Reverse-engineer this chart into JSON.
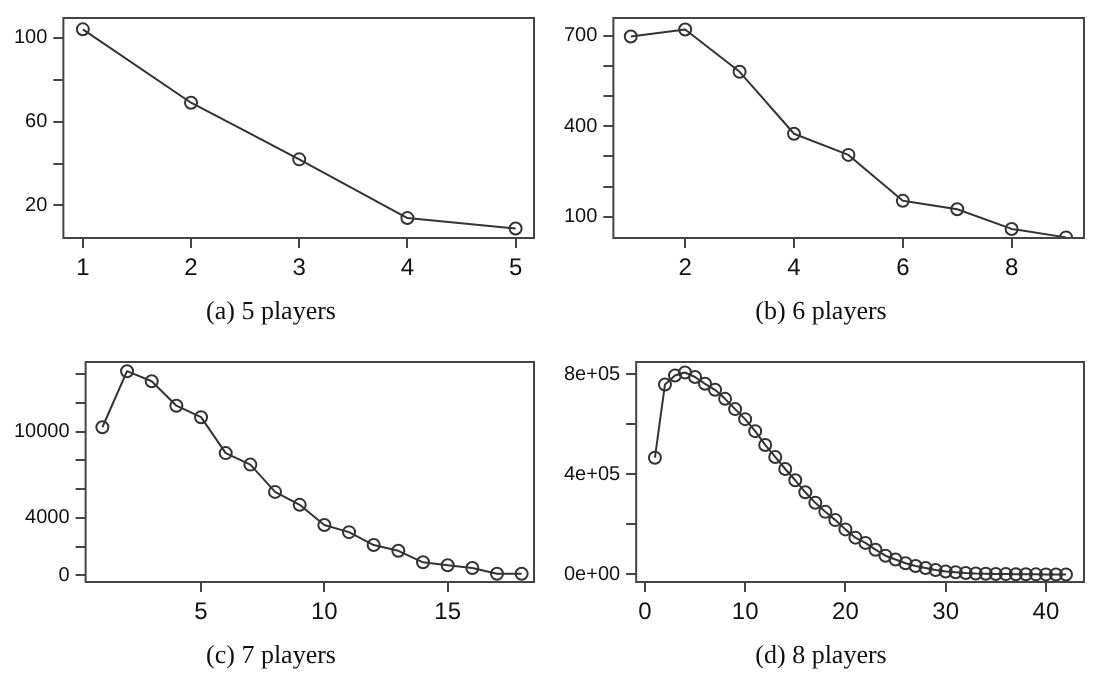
{
  "chart_data": [
    {
      "type": "line",
      "title": "(a) 5 players",
      "x": [
        1,
        2,
        3,
        4,
        5
      ],
      "series": [
        {
          "color": "#333333",
          "values": [
            104,
            69,
            42,
            14,
            9
          ]
        }
      ],
      "xlim": [
        0.82,
        5.17
      ],
      "xticks": [
        1,
        2,
        3,
        4,
        5
      ],
      "ylim": [
        4.5,
        109.4
      ],
      "yticks": [
        {
          "value": 20,
          "label": "20"
        },
        {
          "value": 40,
          "label": null
        },
        {
          "value": 60,
          "label": "60"
        },
        {
          "value": 80,
          "label": null
        },
        {
          "value": 100,
          "label": "100"
        }
      ],
      "grid": false,
      "legend": false,
      "marker": "circle",
      "line_style": "solid"
    },
    {
      "type": "line",
      "title": "(b) 6 players",
      "x": [
        1,
        2,
        3,
        4,
        5,
        6,
        7,
        8,
        9
      ],
      "series": [
        {
          "color": "#333333",
          "values": [
            697,
            720,
            580,
            375,
            305,
            153,
            125,
            60,
            32
          ]
        }
      ],
      "xlim": [
        0.68,
        9.33
      ],
      "xticks": [
        2,
        4,
        6,
        8
      ],
      "ylim": [
        30,
        758
      ],
      "yticks": [
        {
          "value": 100,
          "label": "100"
        },
        {
          "value": 200,
          "label": null
        },
        {
          "value": 300,
          "label": null
        },
        {
          "value": 400,
          "label": "400"
        },
        {
          "value": 500,
          "label": null
        },
        {
          "value": 600,
          "label": null
        },
        {
          "value": 700,
          "label": "700"
        }
      ],
      "grid": false,
      "legend": false,
      "marker": "circle",
      "line_style": "solid"
    },
    {
      "type": "line",
      "title": "(c) 7 players",
      "x": [
        1,
        2,
        3,
        4,
        5,
        6,
        7,
        8,
        9,
        10,
        11,
        12,
        13,
        14,
        15,
        16,
        17,
        18
      ],
      "series": [
        {
          "color": "#333333",
          "values": [
            10300,
            14200,
            13500,
            11800,
            11000,
            8500,
            7700,
            5800,
            4900,
            3500,
            3000,
            2100,
            1700,
            900,
            700,
            500,
            100,
            100
          ]
        }
      ],
      "xlim": [
        0.32,
        18.5
      ],
      "xticks": [
        5,
        10,
        15
      ],
      "ylim": [
        -470,
        14840
      ],
      "yticks": [
        {
          "value": 0,
          "label": "0"
        },
        {
          "value": 2000,
          "label": null
        },
        {
          "value": 4000,
          "label": "4000"
        },
        {
          "value": 6000,
          "label": null
        },
        {
          "value": 8000,
          "label": null
        },
        {
          "value": 10000,
          "label": "10000"
        },
        {
          "value": 12000,
          "label": null
        },
        {
          "value": 14000,
          "label": null
        }
      ],
      "grid": false,
      "legend": false,
      "marker": "circle",
      "line_style": "solid"
    },
    {
      "type": "line",
      "title": "(d) 8 players",
      "x": [
        1,
        2,
        3,
        4,
        5,
        6,
        7,
        8,
        9,
        10,
        11,
        12,
        13,
        14,
        15,
        16,
        17,
        18,
        19,
        20,
        21,
        22,
        23,
        24,
        25,
        26,
        27,
        28,
        29,
        30,
        31,
        32,
        33,
        34,
        35,
        36,
        37,
        38,
        39,
        40,
        41,
        42
      ],
      "series": [
        {
          "color": "#333333",
          "values": [
            466000,
            758000,
            794000,
            806000,
            788000,
            761000,
            737000,
            701000,
            660000,
            620000,
            572000,
            517000,
            469000,
            421000,
            376000,
            328000,
            286000,
            250000,
            217000,
            180000,
            147000,
            126000,
            99000,
            75000,
            60000,
            45000,
            34000,
            26000,
            18000,
            12000,
            9000,
            6000,
            4000,
            3000,
            2000,
            1500,
            1000,
            800,
            500,
            300,
            200,
            100
          ]
        }
      ],
      "xlim": [
        -0.87,
        43.8
      ],
      "xticks": [
        0,
        10,
        20,
        30,
        40
      ],
      "ylim": [
        -30000,
        848000
      ],
      "yticks": [
        {
          "value": 0,
          "label": "0e+00"
        },
        {
          "value": 200000,
          "label": null
        },
        {
          "value": 400000,
          "label": "4e+05"
        },
        {
          "value": 600000,
          "label": null
        },
        {
          "value": 800000,
          "label": "8e+05"
        }
      ],
      "grid": false,
      "legend": false,
      "marker": "circle",
      "line_style": "solid"
    }
  ]
}
